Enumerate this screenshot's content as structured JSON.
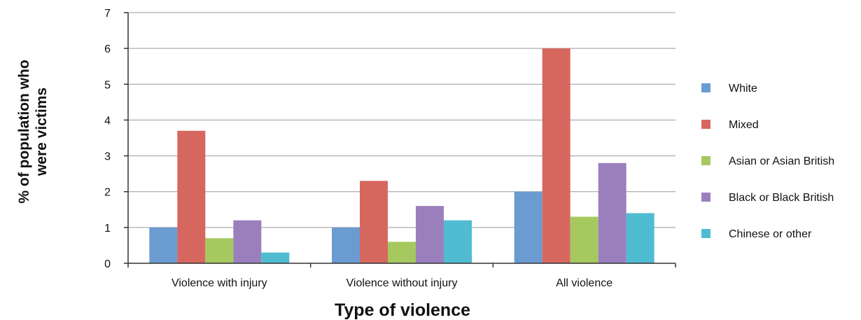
{
  "chart_data": {
    "type": "bar",
    "title": "",
    "xlabel": "Type of violence",
    "ylabel_lines": [
      "% of population who",
      "were victims"
    ],
    "categories": [
      "Violence with injury",
      "Violence without injury",
      "All violence"
    ],
    "ylim": [
      0,
      7
    ],
    "yticks": [
      "0",
      "1",
      "2",
      "3",
      "4",
      "5",
      "6",
      "7"
    ],
    "grid": true,
    "legend_position": "right",
    "series": [
      {
        "name": "White",
        "color": "#6a9bd1",
        "values": [
          1.0,
          1.0,
          2.0
        ]
      },
      {
        "name": "Mixed",
        "color": "#d6675f",
        "values": [
          3.7,
          2.3,
          6.0
        ]
      },
      {
        "name": "Asian or Asian British",
        "color": "#a5c95e",
        "values": [
          0.7,
          0.6,
          1.3
        ]
      },
      {
        "name": "Black or Black British",
        "color": "#9b7fbd",
        "values": [
          1.2,
          1.6,
          2.8
        ]
      },
      {
        "name": "Chinese or other",
        "color": "#4fbcd1",
        "values": [
          0.3,
          1.2,
          1.4
        ]
      }
    ]
  }
}
